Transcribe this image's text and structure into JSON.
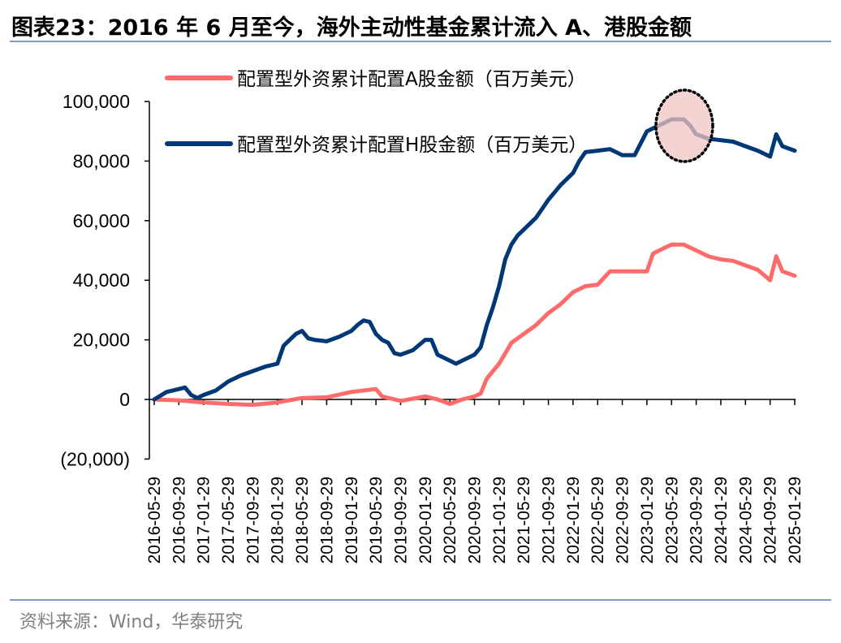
{
  "title": "图表23：2016 年 6 月至今，海外主动性基金累计流入 A、港股金额",
  "source": "资料来源：Wind，华泰研究",
  "colors": {
    "series_a": "#FF6B6B",
    "series_h": "#003876",
    "rule": "#7F9CC5",
    "highlight_fill": "#F0C4C4"
  },
  "chart_data": {
    "type": "line",
    "title": "",
    "xlabel": "",
    "ylabel": "",
    "ylim": [
      -20000,
      100000
    ],
    "yticks": [
      -20000,
      0,
      20000,
      40000,
      60000,
      80000,
      100000
    ],
    "ytick_labels": [
      "(20,000)",
      "0",
      "20,000",
      "40,000",
      "60,000",
      "80,000",
      "100,000"
    ],
    "xtick_labels": [
      "2016-05-29",
      "2016-09-29",
      "2017-01-29",
      "2017-05-29",
      "2017-09-29",
      "2018-01-29",
      "2018-05-29",
      "2018-09-29",
      "2019-01-29",
      "2019-05-29",
      "2019-09-29",
      "2020-01-29",
      "2020-05-29",
      "2020-09-29",
      "2021-01-29",
      "2021-05-29",
      "2021-09-29",
      "2022-01-29",
      "2022-05-29",
      "2022-09-29",
      "2023-01-29",
      "2023-05-29",
      "2023-09-29",
      "2024-01-29",
      "2024-05-29",
      "2024-09-29",
      "2025-01-29"
    ],
    "grid": false,
    "legend_placement": "top-left",
    "annotation": "dotted ellipse highlighting the 2023-05 to 2023-09 peak",
    "series": [
      {
        "name": "配置型外资累计配置A股金额（百万美元）",
        "color": "#FF6B6B",
        "x": [
          "2016-05",
          "2016-09",
          "2017-01",
          "2017-05",
          "2017-09",
          "2018-01",
          "2018-05",
          "2018-09",
          "2019-01",
          "2019-05",
          "2019-06",
          "2019-09",
          "2020-01",
          "2020-03",
          "2020-05",
          "2020-07",
          "2020-09",
          "2020-10",
          "2020-11",
          "2021-01",
          "2021-03",
          "2021-05",
          "2021-07",
          "2021-09",
          "2021-11",
          "2022-01",
          "2022-03",
          "2022-05",
          "2022-07",
          "2022-09",
          "2022-11",
          "2023-01",
          "2023-02",
          "2023-04",
          "2023-05",
          "2023-07",
          "2023-09",
          "2023-11",
          "2024-01",
          "2024-03",
          "2024-05",
          "2024-07",
          "2024-09",
          "2024-10",
          "2024-11",
          "2025-01"
        ],
        "values": [
          0,
          -300,
          -1000,
          -1500,
          -1800,
          -1000,
          500,
          700,
          2500,
          3500,
          1000,
          -500,
          1000,
          0,
          -1500,
          0,
          1000,
          2000,
          7000,
          12000,
          19000,
          22000,
          25000,
          29000,
          32000,
          36000,
          38000,
          38500,
          43000,
          43000,
          43000,
          43000,
          49000,
          51000,
          52000,
          52000,
          50000,
          48000,
          47000,
          46500,
          45000,
          43500,
          40000,
          48000,
          43000,
          41500
        ]
      },
      {
        "name": "配置型外资累计配置H股金额（百万美元）",
        "color": "#003876",
        "x": [
          "2016-05",
          "2016-07",
          "2016-09",
          "2016-10",
          "2016-11",
          "2016-12",
          "2017-01",
          "2017-03",
          "2017-05",
          "2017-07",
          "2017-09",
          "2017-11",
          "2018-01",
          "2018-02",
          "2018-03",
          "2018-04",
          "2018-05",
          "2018-06",
          "2018-07",
          "2018-09",
          "2018-11",
          "2019-01",
          "2019-02",
          "2019-03",
          "2019-04",
          "2019-05",
          "2019-06",
          "2019-07",
          "2019-08",
          "2019-09",
          "2019-11",
          "2020-01",
          "2020-02",
          "2020-03",
          "2020-05",
          "2020-06",
          "2020-07",
          "2020-09",
          "2020-10",
          "2020-11",
          "2020-12",
          "2021-01",
          "2021-02",
          "2021-03",
          "2021-04",
          "2021-05",
          "2021-07",
          "2021-09",
          "2021-11",
          "2022-01",
          "2022-02",
          "2022-03",
          "2022-05",
          "2022-07",
          "2022-09",
          "2022-11",
          "2023-01",
          "2023-03",
          "2023-05",
          "2023-07",
          "2023-08",
          "2023-09",
          "2023-11",
          "2024-01",
          "2024-03",
          "2024-05",
          "2024-07",
          "2024-09",
          "2024-10",
          "2024-11",
          "2025-01"
        ],
        "values": [
          0,
          2500,
          3500,
          4000,
          1500,
          500,
          1500,
          3000,
          6000,
          8000,
          9500,
          11000,
          12000,
          18000,
          20000,
          22000,
          23000,
          20500,
          20000,
          19500,
          21000,
          23000,
          25000,
          26500,
          26000,
          22000,
          20000,
          19000,
          15500,
          15000,
          16500,
          20000,
          20000,
          15000,
          13000,
          12000,
          13000,
          15000,
          17500,
          25000,
          31000,
          38000,
          47000,
          52000,
          55000,
          57000,
          61000,
          67000,
          72000,
          76000,
          80000,
          83000,
          83500,
          84000,
          82000,
          82000,
          90000,
          92000,
          94000,
          94000,
          92000,
          89000,
          87500,
          87000,
          86500,
          85000,
          83500,
          81500,
          89000,
          85000,
          83500
        ]
      }
    ]
  }
}
